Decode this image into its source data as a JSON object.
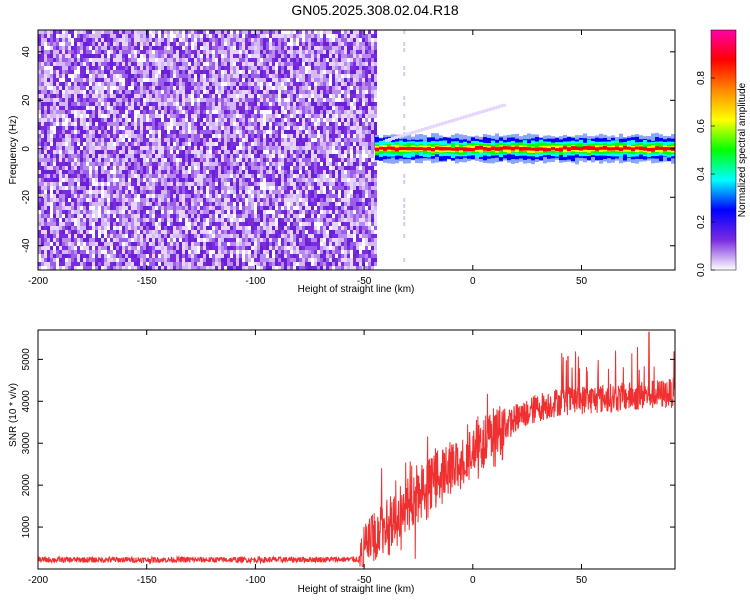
{
  "title": "GN05.2025.308.02.04.R18",
  "chart_data": [
    {
      "type": "heatmap",
      "name": "spectrogram",
      "xlabel": "Height of straight line (km)",
      "ylabel": "Frequency (Hz)",
      "xlim": [
        -200,
        93
      ],
      "ylim": [
        -50,
        49
      ],
      "xticks": [
        -200,
        -150,
        -100,
        -50,
        0,
        50
      ],
      "xtick_labels": [
        "-200",
        "-150",
        "-100",
        "-50",
        "0",
        "50"
      ],
      "yticks": [
        -40,
        -20,
        0,
        20,
        40
      ],
      "ytick_labels": [
        "-40",
        "-20",
        "0",
        "20",
        "40"
      ],
      "noise_region_x": [
        -200,
        -45
      ],
      "signal_start_x": -45,
      "signal_band_hz": [
        -4,
        4
      ],
      "colorbar": {
        "label": "Normalized spectral amplitude",
        "range": [
          0,
          1
        ],
        "ticks": [
          0.0,
          0.2,
          0.4,
          0.6,
          0.8
        ],
        "tick_labels": [
          "0.0",
          "0.2",
          "0.4",
          "0.6",
          "0.8"
        ],
        "colors": [
          "#ffffff",
          "#7a2be0",
          "#0000ff",
          "#00ffff",
          "#00ff00",
          "#ffff00",
          "#ff8800",
          "#ff0000",
          "#ff00aa"
        ]
      }
    },
    {
      "type": "line",
      "name": "snr",
      "xlabel": "Height of straight line (km)",
      "ylabel": "SNR (10 * v/v)",
      "xlim": [
        -200,
        93
      ],
      "ylim": [
        0,
        5700
      ],
      "xticks": [
        -200,
        -150,
        -100,
        -50,
        0,
        50
      ],
      "xtick_labels": [
        "-200",
        "-150",
        "-100",
        "-50",
        "0",
        "50"
      ],
      "yticks": [
        1000,
        2000,
        3000,
        4000,
        5000
      ],
      "ytick_labels": [
        "1000",
        "2000",
        "3000",
        "4000",
        "5000"
      ],
      "color": "#f03030",
      "trend": [
        {
          "x": -200,
          "y": 220
        },
        {
          "x": -100,
          "y": 220
        },
        {
          "x": -52,
          "y": 230
        },
        {
          "x": -48,
          "y": 700
        },
        {
          "x": -40,
          "y": 1000
        },
        {
          "x": -30,
          "y": 1500
        },
        {
          "x": -20,
          "y": 2000
        },
        {
          "x": -10,
          "y": 2450
        },
        {
          "x": 0,
          "y": 2800
        },
        {
          "x": 10,
          "y": 3200
        },
        {
          "x": 20,
          "y": 3600
        },
        {
          "x": 30,
          "y": 3850
        },
        {
          "x": 40,
          "y": 4000
        },
        {
          "x": 55,
          "y": 4050
        },
        {
          "x": 70,
          "y": 4100
        },
        {
          "x": 80,
          "y": 4150
        },
        {
          "x": 93,
          "y": 4200
        }
      ],
      "peak": {
        "x": 81,
        "y": 5650
      }
    }
  ]
}
